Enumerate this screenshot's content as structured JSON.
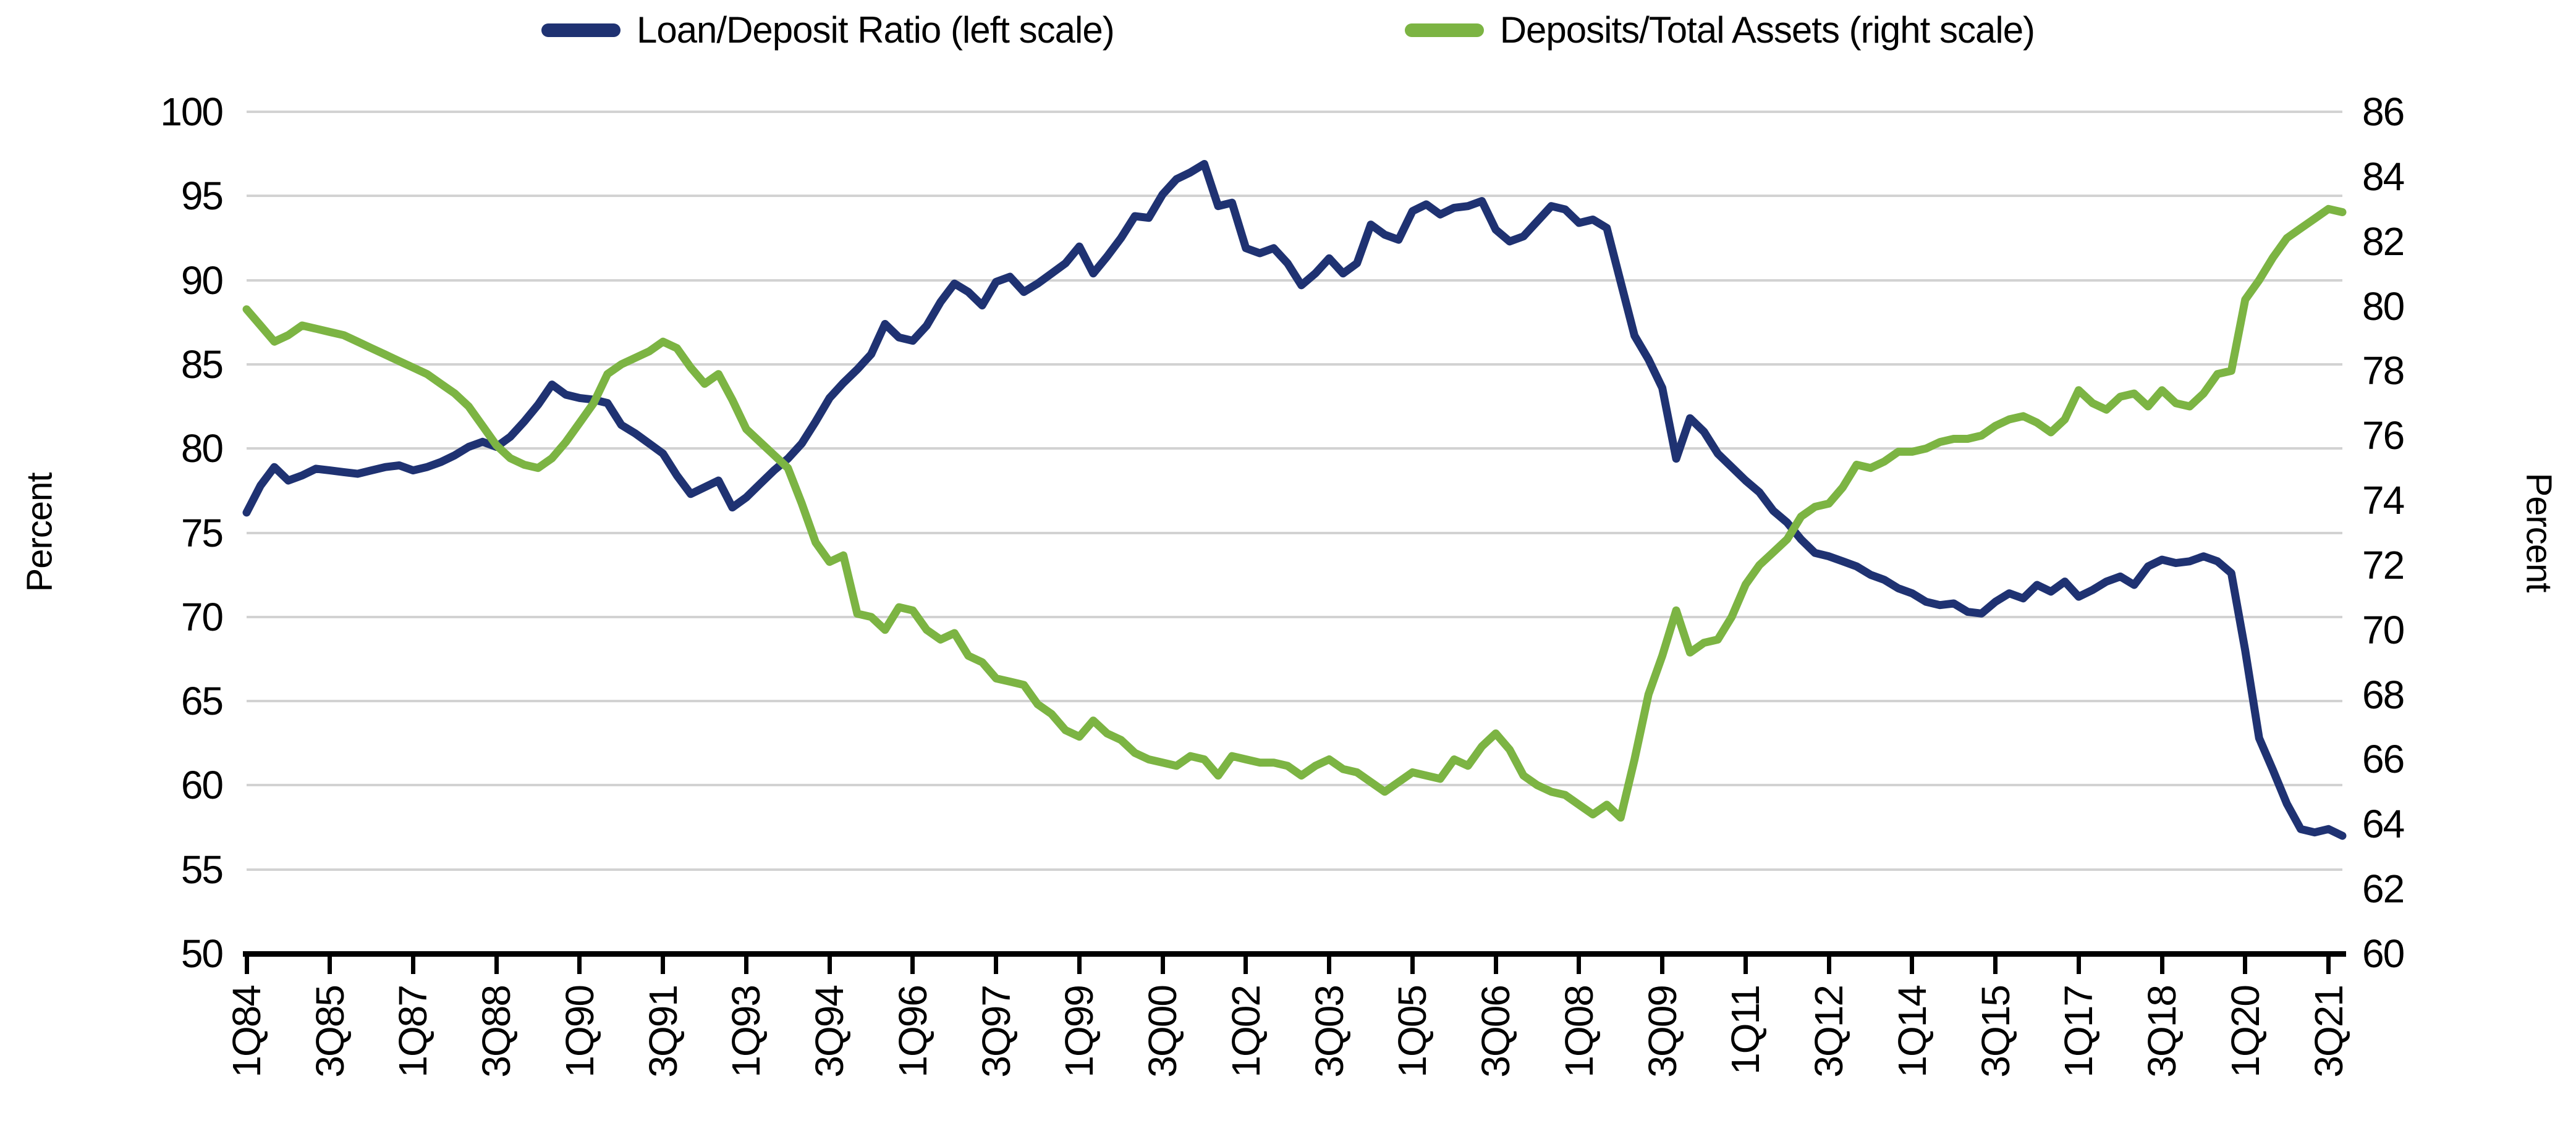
{
  "legend": {
    "series1_label": "Loan/Deposit Ratio (left scale)",
    "series2_label": "Deposits/Total Assets (right scale)"
  },
  "left_axis": {
    "title": "Percent",
    "tick_labels": [
      "100",
      "95",
      "90",
      "85",
      "80",
      "75",
      "70",
      "65",
      "60",
      "55",
      "50"
    ],
    "min": 50,
    "max": 100
  },
  "right_axis": {
    "title": "Percent",
    "tick_labels": [
      "86",
      "84",
      "82",
      "80",
      "78",
      "76",
      "74",
      "72",
      "70",
      "68",
      "66",
      "64",
      "62",
      "60"
    ],
    "min": 60,
    "max": 86
  },
  "x_axis": {
    "tick_labels": [
      "1Q84",
      "3Q85",
      "1Q87",
      "3Q88",
      "1Q90",
      "3Q91",
      "1Q93",
      "3Q94",
      "1Q96",
      "3Q97",
      "1Q99",
      "3Q00",
      "1Q02",
      "3Q03",
      "1Q05",
      "3Q06",
      "1Q08",
      "3Q09",
      "1Q11",
      "3Q12",
      "1Q14",
      "3Q15",
      "1Q17",
      "3Q18",
      "1Q20",
      "3Q21"
    ],
    "ticks_every_n_quarters": 6
  },
  "colors": {
    "loan_deposit_line": "#1F3272",
    "deposits_assets_line": "#7CB443",
    "gridline": "#D2D2D2",
    "axis": "#000000"
  },
  "chart_data": {
    "type": "line",
    "frequency": "quarterly",
    "x_start": "1Q84",
    "x_end": "4Q21",
    "grid": true,
    "legend_position": "top",
    "ylim_left": [
      50,
      100
    ],
    "ylim_right": [
      60,
      86
    ],
    "series": [
      {
        "name": "Loan/Deposit Ratio (left scale)",
        "axis": "left",
        "color": "#1F3272",
        "values": [
          76.2,
          77.8,
          78.9,
          78.1,
          78.4,
          78.8,
          78.7,
          78.6,
          78.5,
          78.7,
          78.9,
          79.0,
          78.7,
          78.9,
          79.2,
          79.6,
          80.1,
          80.4,
          80.1,
          80.7,
          81.6,
          82.6,
          83.8,
          83.2,
          83.0,
          82.9,
          82.7,
          81.4,
          80.9,
          80.3,
          79.7,
          78.4,
          77.3,
          77.7,
          78.1,
          76.5,
          77.1,
          77.9,
          78.7,
          79.4,
          80.3,
          81.6,
          83.0,
          83.9,
          84.7,
          85.6,
          87.4,
          86.6,
          86.4,
          87.3,
          88.7,
          89.8,
          89.3,
          88.5,
          89.9,
          90.2,
          89.3,
          89.8,
          90.4,
          91.0,
          92.0,
          90.4,
          91.4,
          92.5,
          93.8,
          93.7,
          95.1,
          96.0,
          96.4,
          96.9,
          94.4,
          94.6,
          91.9,
          91.6,
          91.9,
          91.0,
          89.7,
          90.4,
          91.3,
          90.4,
          91.0,
          93.3,
          92.7,
          92.4,
          94.1,
          94.5,
          93.9,
          94.3,
          94.4,
          94.7,
          93.0,
          92.3,
          92.6,
          93.5,
          94.4,
          94.2,
          93.4,
          93.6,
          93.1,
          89.9,
          86.7,
          85.3,
          83.6,
          79.4,
          81.8,
          81.0,
          79.7,
          78.9,
          78.1,
          77.4,
          76.3,
          75.6,
          74.6,
          73.8,
          73.6,
          73.3,
          73.0,
          72.5,
          72.2,
          71.7,
          71.4,
          70.9,
          70.7,
          70.8,
          70.3,
          70.2,
          70.9,
          71.4,
          71.1,
          71.9,
          71.5,
          72.1,
          71.2,
          71.6,
          72.1,
          72.4,
          71.9,
          73.0,
          73.4,
          73.2,
          73.3,
          73.6,
          73.3,
          72.6,
          68.0,
          62.8,
          60.9,
          58.9,
          57.4,
          57.2,
          57.4,
          57.0
        ]
      },
      {
        "name": "Deposits/Total Assets (right scale)",
        "axis": "right",
        "color": "#7CB443",
        "values": [
          79.9,
          79.4,
          78.9,
          79.1,
          79.4,
          79.3,
          79.2,
          79.1,
          78.9,
          78.7,
          78.5,
          78.3,
          78.1,
          77.9,
          77.6,
          77.3,
          76.9,
          76.3,
          75.7,
          75.3,
          75.1,
          75.0,
          75.3,
          75.8,
          76.4,
          77.0,
          77.9,
          78.2,
          78.4,
          78.6,
          78.9,
          78.7,
          78.1,
          77.6,
          77.9,
          77.1,
          76.2,
          75.8,
          75.4,
          75.0,
          73.9,
          72.7,
          72.1,
          72.3,
          70.5,
          70.4,
          70.0,
          70.7,
          70.6,
          70.0,
          69.7,
          69.9,
          69.2,
          69.0,
          68.5,
          68.4,
          68.3,
          67.7,
          67.4,
          66.9,
          66.7,
          67.2,
          66.8,
          66.6,
          66.2,
          66.0,
          65.9,
          65.8,
          66.1,
          66.0,
          65.5,
          66.1,
          66.0,
          65.9,
          65.9,
          65.8,
          65.5,
          65.8,
          66.0,
          65.7,
          65.6,
          65.3,
          65.0,
          65.3,
          65.6,
          65.5,
          65.4,
          66.0,
          65.8,
          66.4,
          66.8,
          66.3,
          65.5,
          65.2,
          65.0,
          64.9,
          64.6,
          64.3,
          64.6,
          64.2,
          66.0,
          68.0,
          69.2,
          70.6,
          69.3,
          69.6,
          69.7,
          70.4,
          71.4,
          72.0,
          72.4,
          72.8,
          73.5,
          73.8,
          73.9,
          74.4,
          75.1,
          75.0,
          75.2,
          75.5,
          75.5,
          75.6,
          75.8,
          75.9,
          75.9,
          76.0,
          76.3,
          76.5,
          76.6,
          76.4,
          76.1,
          76.5,
          77.4,
          77.0,
          76.8,
          77.2,
          77.3,
          76.9,
          77.4,
          77.0,
          76.9,
          77.3,
          77.9,
          78.0,
          80.2,
          80.8,
          81.5,
          82.1,
          82.4,
          82.7,
          83.0,
          82.9
        ]
      }
    ]
  }
}
